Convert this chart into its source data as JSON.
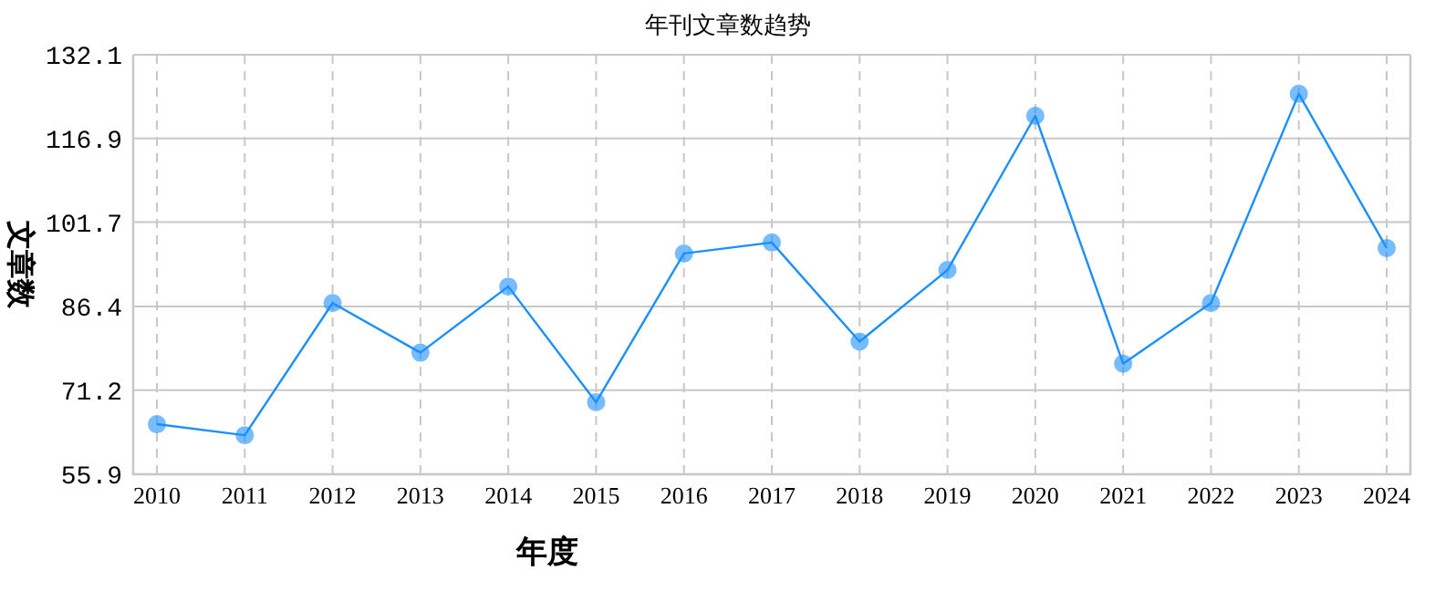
{
  "chart_data": {
    "type": "line",
    "title": "年刊文章数趋势",
    "xlabel": "年度",
    "ylabel": "文章数",
    "categories": [
      "2010",
      "2011",
      "2012",
      "2013",
      "2014",
      "2015",
      "2016",
      "2017",
      "2018",
      "2019",
      "2020",
      "2021",
      "2022",
      "2023",
      "2024"
    ],
    "series": [
      {
        "color": "#1a8fff",
        "values": [
          65,
          63,
          87,
          78,
          90,
          69,
          96,
          98,
          80,
          93,
          121,
          76,
          87,
          125,
          97
        ]
      }
    ],
    "ylim": [
      55.9,
      132.1
    ],
    "yticks": [
      55.9,
      71.2,
      86.4,
      101.7,
      116.9,
      132.1
    ],
    "grid": true,
    "marker": "circle",
    "line_style": "solid"
  }
}
